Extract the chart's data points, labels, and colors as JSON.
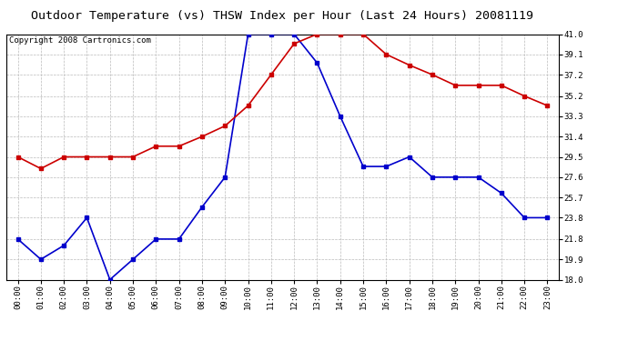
{
  "title": "Outdoor Temperature (vs) THSW Index per Hour (Last 24 Hours) 20081119",
  "copyright": "Copyright 2008 Cartronics.com",
  "hours": [
    "00:00",
    "01:00",
    "02:00",
    "03:00",
    "04:00",
    "05:00",
    "06:00",
    "07:00",
    "08:00",
    "09:00",
    "10:00",
    "11:00",
    "12:00",
    "13:00",
    "14:00",
    "15:00",
    "16:00",
    "17:00",
    "18:00",
    "19:00",
    "20:00",
    "21:00",
    "22:00",
    "23:00"
  ],
  "outdoor_temp": [
    21.8,
    19.9,
    21.2,
    23.8,
    18.0,
    19.9,
    21.8,
    21.8,
    24.8,
    27.6,
    41.0,
    41.0,
    41.0,
    38.3,
    33.3,
    28.6,
    28.6,
    29.5,
    27.6,
    27.6,
    27.6,
    26.1,
    23.8,
    23.8
  ],
  "thsw_index": [
    29.5,
    28.4,
    29.5,
    29.5,
    29.5,
    29.5,
    30.5,
    30.5,
    31.4,
    32.4,
    34.3,
    37.2,
    40.1,
    41.0,
    41.0,
    41.0,
    39.1,
    38.1,
    37.2,
    36.2,
    36.2,
    36.2,
    35.2,
    34.3
  ],
  "temp_color": "#0000cc",
  "thsw_color": "#cc0000",
  "bg_color": "#ffffff",
  "plot_bg": "#ffffff",
  "grid_color": "#bbbbbb",
  "ylim_min": 18.0,
  "ylim_max": 41.0,
  "yticks": [
    18.0,
    19.9,
    21.8,
    23.8,
    25.7,
    27.6,
    29.5,
    31.4,
    33.3,
    35.2,
    37.2,
    39.1,
    41.0
  ],
  "title_fontsize": 9.5,
  "copyright_fontsize": 6.5,
  "tick_fontsize": 6.5,
  "marker": "s",
  "markersize": 2.5,
  "linewidth": 1.2
}
